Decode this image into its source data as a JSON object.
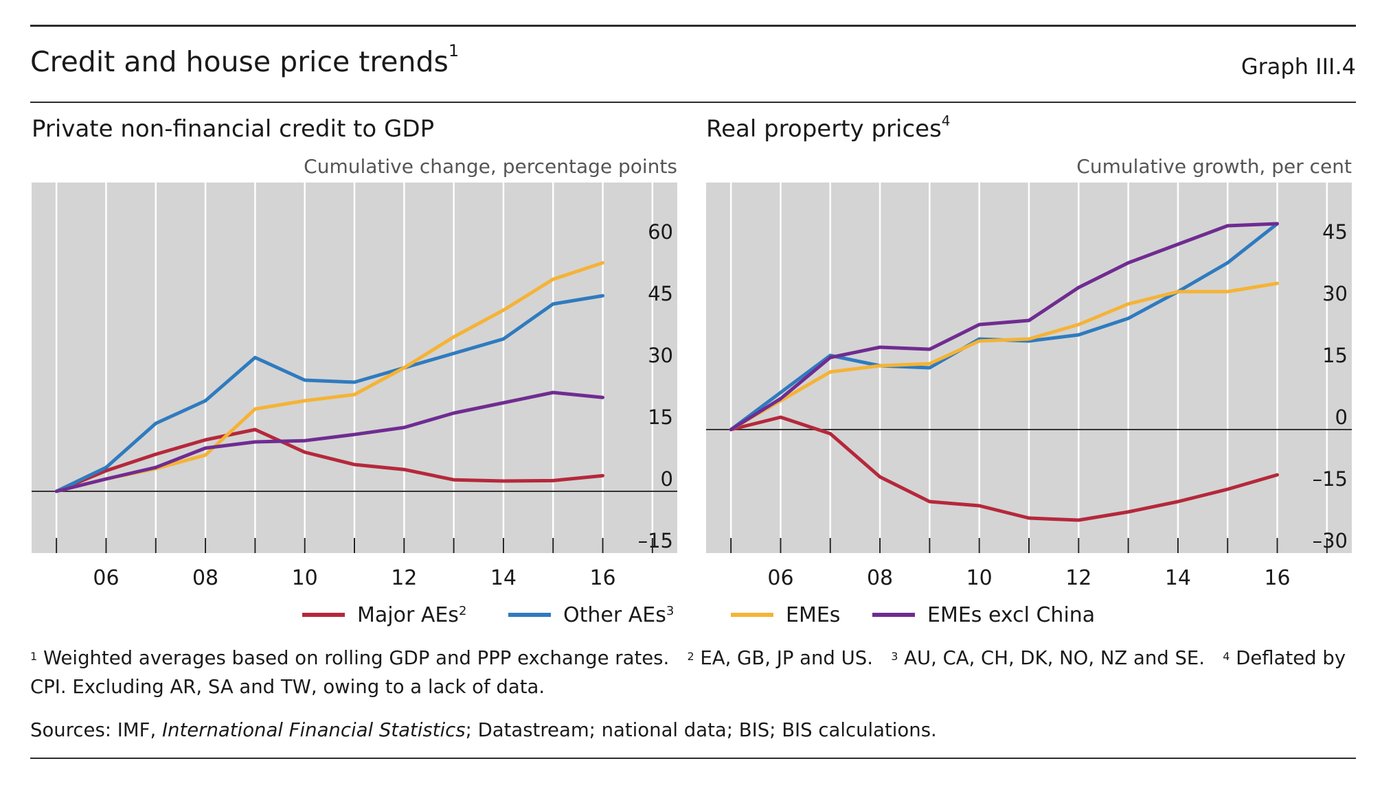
{
  "header": {
    "title": "Credit and house price trends",
    "title_note": "1",
    "graph_id": "Graph III.4"
  },
  "panels": {
    "left": {
      "title": "Private non-financial credit to GDP",
      "title_note": "",
      "unit": "Cumulative change, percentage points"
    },
    "right": {
      "title": "Real property prices",
      "title_note": "4",
      "unit": "Cumulative growth, per cent"
    }
  },
  "legend": [
    {
      "label": "Major AEs",
      "note": "2",
      "color": "#b5283b"
    },
    {
      "label": "Other AEs",
      "note": "3",
      "color": "#2f7bbf"
    },
    {
      "label": "EMEs",
      "note": "",
      "color": "#f5b335"
    },
    {
      "label": "EMEs excl China",
      "note": "",
      "color": "#6f2c91"
    }
  ],
  "footnotes": {
    "n1_mark": "1",
    "n1": "Weighted averages based on rolling GDP and PPP exchange rates.",
    "n2_mark": "2",
    "n2": "EA, GB, JP and US.",
    "n3_mark": "3",
    "n3": "AU, CA, CH, DK, NO, NZ and SE.",
    "n4_mark": "4",
    "n4": "Deflated by CPI. Excluding AR, SA and TW, owing to a lack of data."
  },
  "sources": {
    "prefix": "Sources: IMF,",
    "italic": "International Financial Statistics",
    "suffix": "; Datastream; national data; BIS; BIS calculations."
  },
  "chart_data": [
    {
      "type": "line",
      "title": "Private non-financial credit to GDP",
      "ylabel": "Cumulative change, percentage points",
      "x": [
        2005,
        2006,
        2007,
        2008,
        2009,
        2010,
        2011,
        2012,
        2013,
        2014,
        2015,
        2016
      ],
      "xticks": [
        2006,
        2008,
        2010,
        2012,
        2014,
        2016
      ],
      "xtick_labels": [
        "06",
        "08",
        "10",
        "12",
        "14",
        "16"
      ],
      "xlim": [
        2004.5,
        2017.5
      ],
      "ylim": [
        -15,
        75
      ],
      "yticks": [
        -15,
        0,
        15,
        30,
        45,
        60
      ],
      "ytick_labels": [
        "–15",
        "0",
        "15",
        "30",
        "45",
        "60"
      ],
      "yaxis_side": "right",
      "grid": "vertical",
      "series": [
        {
          "name": "Major AEs",
          "color": "#b5283b",
          "values": [
            0,
            5,
            9,
            12.5,
            15,
            9.5,
            6.5,
            5.3,
            2.8,
            2.5,
            2.6,
            3.8
          ]
        },
        {
          "name": "Other AEs",
          "color": "#2f7bbf",
          "values": [
            0,
            5.8,
            16.5,
            22,
            32.5,
            27,
            26.5,
            30,
            33.5,
            37,
            45.5,
            47.5
          ]
        },
        {
          "name": "EMEs",
          "color": "#f5b335",
          "values": [
            0,
            3,
            5.5,
            8.8,
            20,
            22,
            23.5,
            30,
            37.5,
            44,
            51.5,
            55.5
          ]
        },
        {
          "name": "EMEs excl China",
          "color": "#6f2c91",
          "values": [
            0,
            3,
            5.8,
            10.5,
            12,
            12.3,
            13.8,
            15.5,
            19,
            21.5,
            24,
            22.8
          ]
        }
      ]
    },
    {
      "type": "line",
      "title": "Real property prices",
      "ylabel": "Cumulative growth, per cent",
      "x": [
        2005,
        2006,
        2007,
        2008,
        2009,
        2010,
        2011,
        2012,
        2013,
        2014,
        2015,
        2016
      ],
      "xticks": [
        2006,
        2008,
        2010,
        2012,
        2014,
        2016
      ],
      "xtick_labels": [
        "06",
        "08",
        "10",
        "12",
        "14",
        "16"
      ],
      "xlim": [
        2004.5,
        2017.5
      ],
      "ylim": [
        -30,
        60
      ],
      "yticks": [
        -30,
        -15,
        0,
        15,
        30,
        45
      ],
      "ytick_labels": [
        "–30",
        "–15",
        "0",
        "15",
        "30",
        "45"
      ],
      "yaxis_side": "right",
      "grid": "vertical",
      "series": [
        {
          "name": "Major AEs",
          "color": "#b5283b",
          "values": [
            0,
            3,
            -1,
            -11.5,
            -17.5,
            -18.5,
            -21.5,
            -22,
            -20,
            -17.5,
            -14.5,
            -11
          ]
        },
        {
          "name": "Other AEs",
          "color": "#2f7bbf",
          "values": [
            0,
            9,
            18,
            15.5,
            15,
            22,
            21.5,
            23,
            27,
            33.5,
            40.5,
            50
          ]
        },
        {
          "name": "EMEs",
          "color": "#f5b335",
          "values": [
            0,
            7,
            14,
            15.5,
            16,
            21.5,
            22,
            25.5,
            30.5,
            33.5,
            33.5,
            35.5
          ]
        },
        {
          "name": "EMEs excl China",
          "color": "#6f2c91",
          "values": [
            0,
            7.5,
            17.5,
            20,
            19.5,
            25.5,
            26.5,
            34.5,
            40.5,
            45,
            49.5,
            50
          ]
        }
      ]
    }
  ]
}
